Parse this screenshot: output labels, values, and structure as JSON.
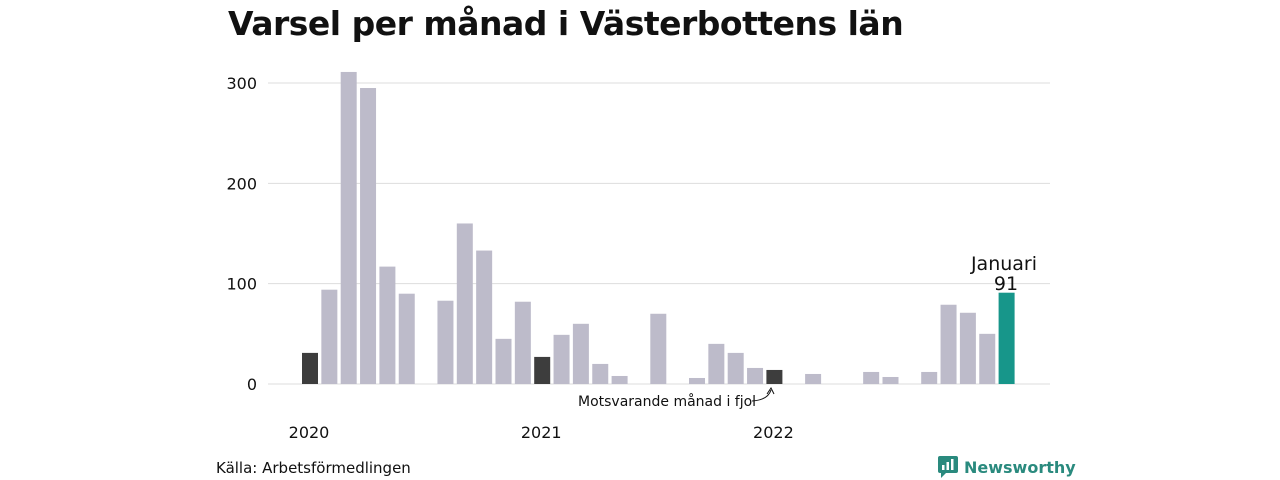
{
  "title": "Varsel per månad i Västerbottens län",
  "source": "Källa: Arbetsförmedlingen",
  "brand": "Newsworthy",
  "annotation": "Motsvarande månad i fjol",
  "highlight": {
    "label": "Januari",
    "value_label": "91"
  },
  "colors": {
    "normal": "#bdbbca",
    "dark": "#3d3d3d",
    "highlight": "#17968a",
    "grid": "#dddddd",
    "brand": "#2a8a7e"
  },
  "chart_data": {
    "type": "bar",
    "ylim": [
      0,
      320
    ],
    "yticks": [
      0,
      100,
      200,
      300
    ],
    "xtick_labels": [
      {
        "label": "2020",
        "index": 0
      },
      {
        "label": "2021",
        "index": 12
      },
      {
        "label": "2022",
        "index": 24
      }
    ],
    "values": [
      31,
      94,
      311,
      295,
      117,
      90,
      null,
      83,
      160,
      133,
      45,
      82,
      27,
      49,
      60,
      20,
      8,
      null,
      70,
      null,
      6,
      40,
      31,
      16,
      14,
      null,
      10,
      null,
      null,
      12,
      7,
      null,
      12,
      79,
      71,
      50,
      91
    ],
    "bar_types": [
      "dark",
      "normal",
      "normal",
      "normal",
      "normal",
      "normal",
      "normal",
      "normal",
      "normal",
      "normal",
      "normal",
      "normal",
      "dark",
      "normal",
      "normal",
      "normal",
      "normal",
      "normal",
      "normal",
      "normal",
      "normal",
      "normal",
      "normal",
      "normal",
      "dark",
      "normal",
      "normal",
      "normal",
      "normal",
      "normal",
      "normal",
      "normal",
      "normal",
      "normal",
      "normal",
      "normal",
      "highlight"
    ]
  }
}
